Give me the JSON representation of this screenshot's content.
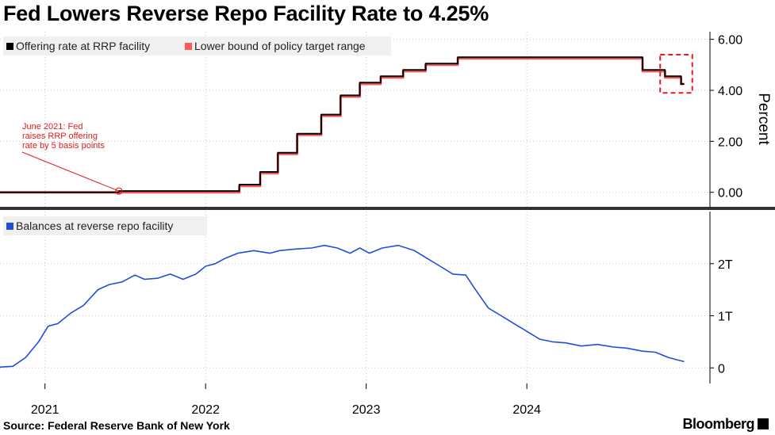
{
  "title": "Fed Lowers Reverse Repo Facility Rate to 4.25%",
  "source": "Source: Federal Reserve Bank of New York",
  "brand": "Bloomberg",
  "chart_data": [
    {
      "type": "line",
      "ylabel": "Percent",
      "ylim": [
        -0.6,
        6.3
      ],
      "yticks": [
        0,
        2,
        4,
        6
      ],
      "ytick_labels": [
        "0.00",
        "2.00",
        "4.00",
        "6.00"
      ],
      "legend": [
        {
          "name": "Offering rate at RRP facility",
          "color": "#000000"
        },
        {
          "name": "Lower bound of policy target range",
          "color": "#ff5a5a"
        }
      ],
      "annotation": {
        "lines": [
          "June 2021: Fed",
          "raises RRP offering",
          "rate by 5 basis points"
        ],
        "color": "#e31b1b",
        "x": 2021.46,
        "y": 0.05
      },
      "highlight_box": {
        "x": [
          2024.83,
          2025.03
        ],
        "y": [
          3.9,
          5.4
        ],
        "color": "#e31b1b"
      },
      "series": [
        {
          "name": "Offering rate at RRP facility",
          "color": "#000000",
          "points": [
            [
              2020.7,
              0
            ],
            [
              2021.46,
              0.05
            ],
            [
              2022.21,
              0.3
            ],
            [
              2022.34,
              0.8
            ],
            [
              2022.45,
              1.55
            ],
            [
              2022.57,
              2.3
            ],
            [
              2022.72,
              3.05
            ],
            [
              2022.84,
              3.8
            ],
            [
              2022.96,
              4.3
            ],
            [
              2023.09,
              4.55
            ],
            [
              2023.23,
              4.8
            ],
            [
              2023.37,
              5.05
            ],
            [
              2023.57,
              5.3
            ],
            [
              2024.72,
              4.8
            ],
            [
              2024.86,
              4.55
            ],
            [
              2024.96,
              4.25
            ],
            [
              2024.98,
              4.25
            ]
          ]
        },
        {
          "name": "Lower bound of policy target range",
          "color": "#ff5a5a",
          "points": [
            [
              2020.7,
              0
            ],
            [
              2022.21,
              0.25
            ],
            [
              2022.34,
              0.75
            ],
            [
              2022.45,
              1.5
            ],
            [
              2022.57,
              2.25
            ],
            [
              2022.72,
              3.0
            ],
            [
              2022.84,
              3.75
            ],
            [
              2022.96,
              4.25
            ],
            [
              2023.09,
              4.5
            ],
            [
              2023.23,
              4.75
            ],
            [
              2023.37,
              5.0
            ],
            [
              2023.57,
              5.25
            ],
            [
              2024.72,
              4.75
            ],
            [
              2024.86,
              4.5
            ],
            [
              2024.96,
              4.25
            ],
            [
              2024.98,
              4.25
            ]
          ]
        }
      ]
    },
    {
      "type": "line",
      "ylim": [
        -0.3,
        3.0
      ],
      "yticks": [
        0,
        1,
        2
      ],
      "ytick_labels": [
        "0",
        "1T",
        "2T"
      ],
      "legend": [
        {
          "name": "Balances at reverse repo facility",
          "color": "#1f4fd8"
        }
      ],
      "series": [
        {
          "name": "Balances at reverse repo facility",
          "color": "#1f4fd8",
          "points": [
            [
              2020.7,
              0.01
            ],
            [
              2020.8,
              0.03
            ],
            [
              2020.88,
              0.2
            ],
            [
              2020.96,
              0.5
            ],
            [
              2021.02,
              0.8
            ],
            [
              2021.08,
              0.85
            ],
            [
              2021.16,
              1.05
            ],
            [
              2021.24,
              1.2
            ],
            [
              2021.33,
              1.5
            ],
            [
              2021.4,
              1.6
            ],
            [
              2021.48,
              1.65
            ],
            [
              2021.56,
              1.78
            ],
            [
              2021.62,
              1.7
            ],
            [
              2021.7,
              1.72
            ],
            [
              2021.78,
              1.8
            ],
            [
              2021.86,
              1.7
            ],
            [
              2021.94,
              1.8
            ],
            [
              2022.0,
              1.95
            ],
            [
              2022.06,
              2.0
            ],
            [
              2022.12,
              2.1
            ],
            [
              2022.2,
              2.2
            ],
            [
              2022.3,
              2.25
            ],
            [
              2022.4,
              2.2
            ],
            [
              2022.46,
              2.25
            ],
            [
              2022.56,
              2.28
            ],
            [
              2022.66,
              2.3
            ],
            [
              2022.74,
              2.35
            ],
            [
              2022.82,
              2.3
            ],
            [
              2022.9,
              2.2
            ],
            [
              2022.96,
              2.3
            ],
            [
              2023.02,
              2.2
            ],
            [
              2023.1,
              2.3
            ],
            [
              2023.2,
              2.35
            ],
            [
              2023.3,
              2.25
            ],
            [
              2023.38,
              2.1
            ],
            [
              2023.46,
              1.95
            ],
            [
              2023.54,
              1.8
            ],
            [
              2023.62,
              1.78
            ],
            [
              2023.68,
              1.5
            ],
            [
              2023.76,
              1.15
            ],
            [
              2023.84,
              1.0
            ],
            [
              2023.92,
              0.85
            ],
            [
              2024.0,
              0.7
            ],
            [
              2024.08,
              0.55
            ],
            [
              2024.16,
              0.5
            ],
            [
              2024.24,
              0.48
            ],
            [
              2024.34,
              0.42
            ],
            [
              2024.44,
              0.45
            ],
            [
              2024.54,
              0.4
            ],
            [
              2024.62,
              0.38
            ],
            [
              2024.72,
              0.32
            ],
            [
              2024.8,
              0.3
            ],
            [
              2024.88,
              0.2
            ],
            [
              2024.94,
              0.15
            ],
            [
              2024.98,
              0.12
            ]
          ]
        }
      ]
    }
  ],
  "x_axis": {
    "range": [
      2020.72,
      2025.14
    ],
    "ticks": [
      2021,
      2022,
      2023,
      2024
    ],
    "tick_labels": [
      "2021",
      "2022",
      "2023",
      "2024"
    ]
  }
}
